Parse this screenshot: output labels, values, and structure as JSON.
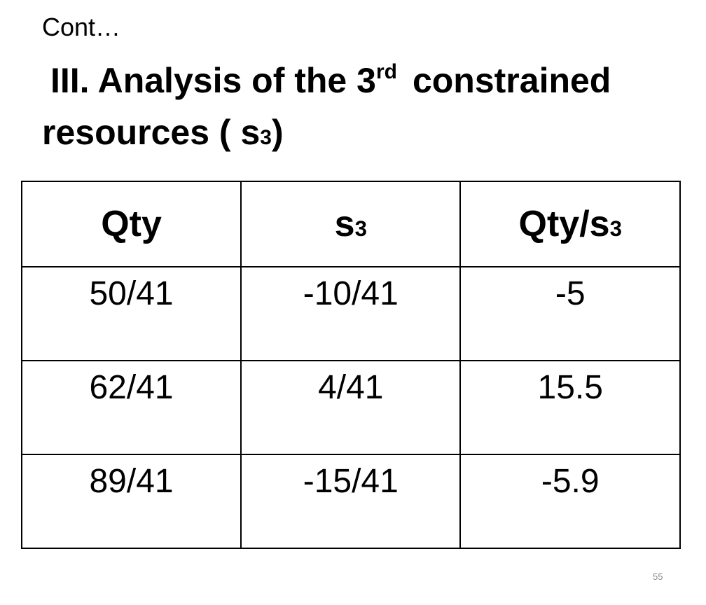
{
  "header": {
    "pretitle": "Cont…",
    "title": {
      "line1": {
        "text": "III. Analysis of the 3",
        "sup": "rd",
        "rest": "constrained"
      },
      "line2": {
        "text": "resources ( s",
        "sub": "3",
        "rest": ")"
      }
    }
  },
  "table": {
    "columns": [
      {
        "text": "Qty"
      },
      {
        "text": "s",
        "sub": "3"
      },
      {
        "text": "Qty/s",
        "sub": "3"
      }
    ],
    "rows": [
      [
        "50/41",
        "-10/41",
        "-5"
      ],
      [
        "62/41",
        "4/41",
        "15.5"
      ],
      [
        "89/41",
        "-15/41",
        "-5.9"
      ]
    ]
  },
  "footer": {
    "page_number": "55"
  }
}
